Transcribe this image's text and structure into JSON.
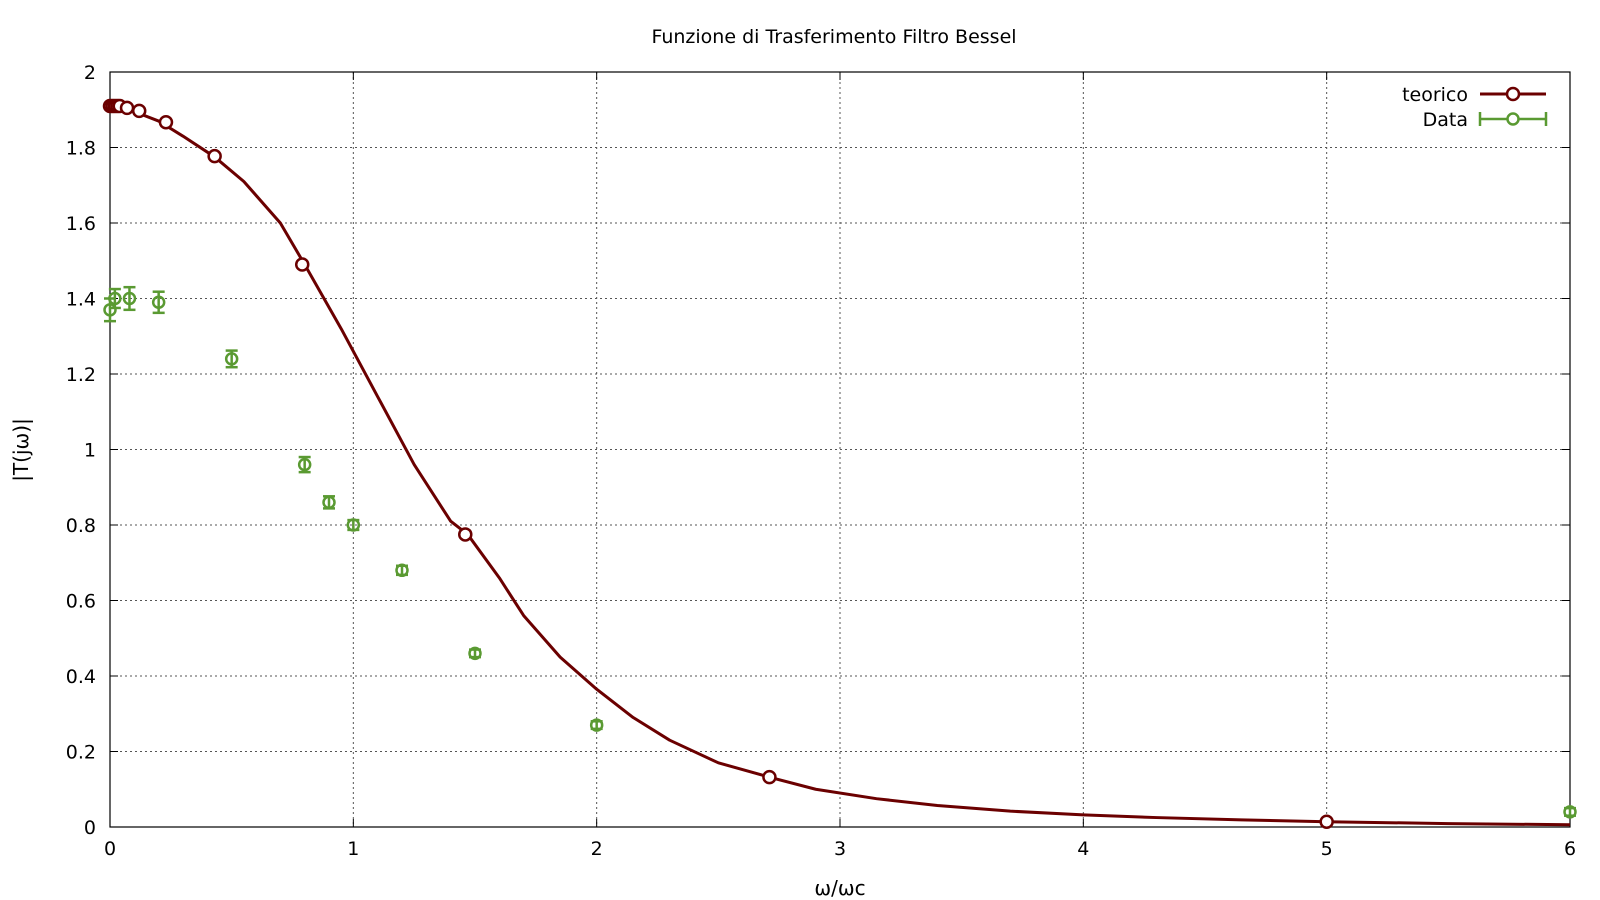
{
  "chart_data": {
    "type": "line",
    "title": "Funzione di Trasferimento Filtro Bessel",
    "xlabel": "ω/ωc",
    "ylabel": "|T(jω)|",
    "xlim": [
      0,
      6
    ],
    "ylim": [
      0,
      2
    ],
    "x_ticks": [
      "0",
      "1",
      "2",
      "3",
      "4",
      "5",
      "6"
    ],
    "y_ticks": [
      "0",
      "0.2",
      "0.4",
      "0.6",
      "0.8",
      "1",
      "1.2",
      "1.4",
      "1.6",
      "1.8",
      "2"
    ],
    "grid": true,
    "legend_position": "top-right",
    "series": [
      {
        "name": "teorico",
        "style": "line-with-markers",
        "color": "#6b0000",
        "curve_x": [
          0,
          0.05,
          0.1,
          0.2,
          0.3,
          0.43,
          0.55,
          0.7,
          0.8,
          0.95,
          1.1,
          1.25,
          1.4,
          1.47,
          1.6,
          1.7,
          1.85,
          2.0,
          2.15,
          2.3,
          2.5,
          2.71,
          2.9,
          3.15,
          3.4,
          3.7,
          4.0,
          4.3,
          4.65,
          5.0,
          5.5,
          6.0
        ],
        "curve_y": [
          1.91,
          1.905,
          1.895,
          1.87,
          1.83,
          1.775,
          1.71,
          1.6,
          1.49,
          1.32,
          1.14,
          0.96,
          0.81,
          0.775,
          0.66,
          0.56,
          0.45,
          0.365,
          0.29,
          0.23,
          0.17,
          0.132,
          0.1,
          0.075,
          0.057,
          0.042,
          0.032,
          0.025,
          0.019,
          0.014,
          0.009,
          0.006
        ],
        "marker_x": [
          0,
          0.01,
          0.02,
          0.03,
          0.04,
          0.07,
          0.12,
          0.23,
          0.43,
          0.79,
          1.46,
          2.71,
          5.0
        ],
        "marker_y": [
          1.91,
          1.91,
          1.91,
          1.91,
          1.91,
          1.905,
          1.897,
          1.867,
          1.777,
          1.49,
          0.775,
          0.132,
          0.014
        ]
      },
      {
        "name": "Data",
        "style": "points-with-errorbars",
        "color": "#5a9a32",
        "x": [
          0.0,
          0.02,
          0.08,
          0.2,
          0.5,
          0.8,
          0.9,
          1.0,
          1.2,
          1.5,
          2.0,
          6.0
        ],
        "y": [
          1.37,
          1.4,
          1.4,
          1.39,
          1.24,
          0.96,
          0.86,
          0.8,
          0.68,
          0.46,
          0.27,
          0.04
        ],
        "yerr": [
          0.03,
          0.025,
          0.03,
          0.028,
          0.022,
          0.02,
          0.016,
          0.013,
          0.012,
          0.01,
          0.01,
          0.01
        ]
      }
    ]
  }
}
